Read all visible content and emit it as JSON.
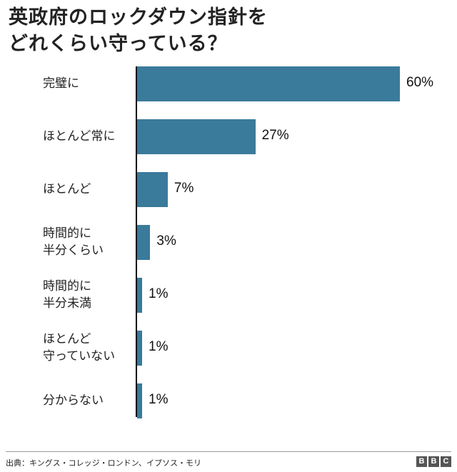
{
  "title": {
    "line1": "英政府のロックダウン指針を",
    "line2": "どれくらい守っている？"
  },
  "footer": {
    "source": "出典：キングス・コレッジ・ロンドン、イプソス・モリ",
    "logo": [
      "B",
      "B",
      "C"
    ]
  },
  "chart_data": {
    "type": "bar",
    "orientation": "horizontal",
    "title": "英政府のロックダウン指針をどれくらい守っている？",
    "categories": [
      "完璧に",
      "ほとんど常に",
      "ほとんど",
      "時間的に\n半分くらい",
      "時間的に\n半分未満",
      "ほとんど\n守っていない",
      "分からない"
    ],
    "values": [
      60,
      27,
      7,
      3,
      1,
      1,
      1
    ],
    "labels": [
      "60%",
      "27%",
      "7%",
      "3%",
      "1%",
      "1%",
      "1%"
    ],
    "unit": "%",
    "xlim": [
      0,
      60
    ],
    "grid": false,
    "color": "#3a7a9b",
    "source": "出典：キングス・コレッジ・ロンドン、イプソス・モリ"
  }
}
